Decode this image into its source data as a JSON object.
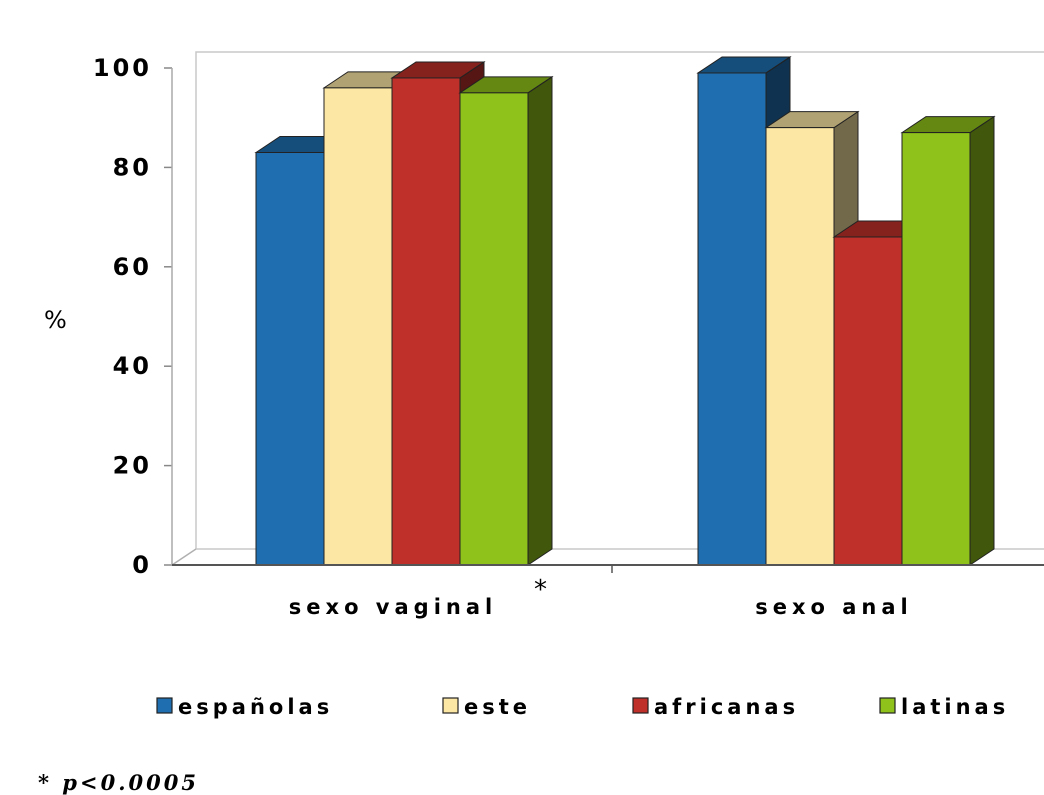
{
  "chart_data": {
    "type": "bar",
    "categories": [
      "sexo vaginal",
      "sexo anal"
    ],
    "series": [
      {
        "name": "españolas",
        "color": "#1f6fb0",
        "values": [
          83,
          99
        ]
      },
      {
        "name": "este",
        "color": "#fde7a4",
        "values": [
          96,
          88
        ]
      },
      {
        "name": "africanas",
        "color": "#c0302a",
        "values": [
          98,
          66
        ]
      },
      {
        "name": "latinas",
        "color": "#8fc21a",
        "values": [
          95,
          87
        ]
      }
    ],
    "ylabel": "%",
    "yticks": [
      0,
      20,
      40,
      60,
      80,
      100
    ],
    "ylim": [
      0,
      100
    ],
    "grid": false,
    "legend_position": "bottom",
    "annotation": "*",
    "footnote": {
      "prefix": "* ",
      "text": "p<0.0005"
    }
  }
}
